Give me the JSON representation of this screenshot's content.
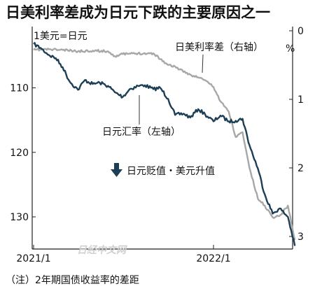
{
  "chart_data": {
    "type": "line",
    "title": "日美利率差成为日元下跌的主要原因之一",
    "left_axis_label": "1美元=日元",
    "right_axis_unit": "%",
    "x_axis_ticks": [
      "2021/1",
      "2022/1"
    ],
    "left_axis_ticks": [
      "110",
      "120",
      "130"
    ],
    "right_axis_ticks": [
      "0",
      "1",
      "2",
      "3"
    ],
    "left_axis_range": [
      100.5,
      135
    ],
    "right_axis_range": [
      0,
      3.2
    ],
    "left_axis_inverted": true,
    "right_axis_inverted": true,
    "annotation": "日元贬值・美元升值",
    "note": "（注）2年期国债收益率的差距",
    "watermark": "日经中文网",
    "series": [
      {
        "name": "日元汇率（左轴）",
        "axis": "left",
        "color": "#1c3f55",
        "points": [
          [
            "2021-01-01",
            103.2
          ],
          [
            "2021-01-15",
            103.8
          ],
          [
            "2021-02-01",
            104.9
          ],
          [
            "2021-02-15",
            105.4
          ],
          [
            "2021-03-01",
            106.8
          ],
          [
            "2021-03-15",
            109.0
          ],
          [
            "2021-04-01",
            110.3
          ],
          [
            "2021-04-15",
            108.8
          ],
          [
            "2021-05-01",
            109.4
          ],
          [
            "2021-05-15",
            109.2
          ],
          [
            "2021-06-01",
            109.7
          ],
          [
            "2021-06-15",
            110.7
          ],
          [
            "2021-07-01",
            111.4
          ],
          [
            "2021-07-15",
            110.2
          ],
          [
            "2021-08-01",
            109.7
          ],
          [
            "2021-08-15",
            109.6
          ],
          [
            "2021-09-01",
            110.2
          ],
          [
            "2021-09-15",
            110.0
          ],
          [
            "2021-10-01",
            111.7
          ],
          [
            "2021-10-15",
            114.2
          ],
          [
            "2021-11-01",
            114.0
          ],
          [
            "2021-11-15",
            114.6
          ],
          [
            "2021-12-01",
            113.3
          ],
          [
            "2021-12-15",
            114.1
          ],
          [
            "2022-01-01",
            115.2
          ],
          [
            "2022-01-15",
            114.3
          ],
          [
            "2022-02-01",
            115.2
          ],
          [
            "2022-02-15",
            115.1
          ],
          [
            "2022-03-01",
            114.8
          ],
          [
            "2022-03-15",
            118.9
          ],
          [
            "2022-04-01",
            122.5
          ],
          [
            "2022-04-15",
            126.5
          ],
          [
            "2022-05-01",
            129.5
          ],
          [
            "2022-05-15",
            128.7
          ],
          [
            "2022-06-01",
            130.0
          ],
          [
            "2022-06-15",
            134.5
          ]
        ]
      },
      {
        "name": "日美利率差（右轴）",
        "axis": "right",
        "color": "#a7a7a7",
        "points": [
          [
            "2021-01-01",
            0.28
          ],
          [
            "2021-02-01",
            0.27
          ],
          [
            "2021-03-01",
            0.28
          ],
          [
            "2021-04-01",
            0.3
          ],
          [
            "2021-05-01",
            0.29
          ],
          [
            "2021-06-01",
            0.3
          ],
          [
            "2021-06-15",
            0.37
          ],
          [
            "2021-07-01",
            0.34
          ],
          [
            "2021-08-01",
            0.33
          ],
          [
            "2021-09-01",
            0.33
          ],
          [
            "2021-10-01",
            0.5
          ],
          [
            "2021-10-15",
            0.52
          ],
          [
            "2021-11-01",
            0.6
          ],
          [
            "2021-11-15",
            0.64
          ],
          [
            "2021-12-01",
            0.68
          ],
          [
            "2021-12-15",
            0.72
          ],
          [
            "2022-01-01",
            0.82
          ],
          [
            "2022-01-15",
            1.03
          ],
          [
            "2022-02-01",
            1.18
          ],
          [
            "2022-02-15",
            1.55
          ],
          [
            "2022-03-01",
            1.48
          ],
          [
            "2022-03-15",
            2.0
          ],
          [
            "2022-04-01",
            2.45
          ],
          [
            "2022-04-15",
            2.55
          ],
          [
            "2022-05-01",
            2.72
          ],
          [
            "2022-05-15",
            2.7
          ],
          [
            "2022-06-01",
            2.55
          ],
          [
            "2022-06-15",
            3.05
          ]
        ]
      }
    ],
    "grid": false,
    "legend": "inline labels"
  }
}
